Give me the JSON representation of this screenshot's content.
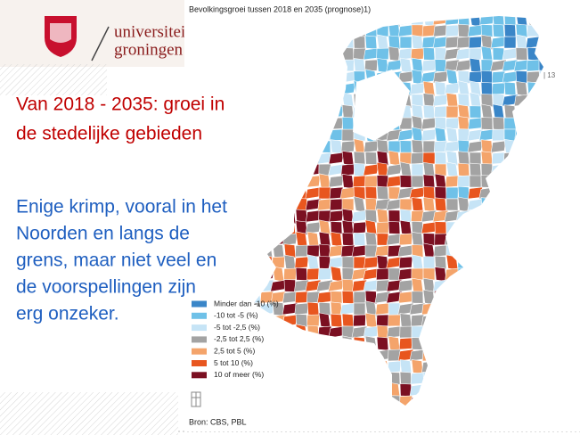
{
  "header": {
    "logo_line1": "universiteit",
    "logo_line2": "groningen",
    "page_number": "| 13"
  },
  "slide": {
    "heading_lines": [
      "Van 2018 - 2035: groei in",
      "de stedelijke gebieden"
    ],
    "body_lines": [
      "Enige krimp, vooral in het",
      "Noorden en langs de",
      "grens, maar niet veel en",
      "de voorspellingen zijn",
      "erg onzeker."
    ]
  },
  "map": {
    "title": "Bevolkingsgroei tussen 2018 en 2035 (prognose)1)",
    "legend": [
      {
        "label": "Minder dan -10 (%)",
        "color": "#3a86c8"
      },
      {
        "label": "-10 tot -5 (%)",
        "color": "#6fc1e8"
      },
      {
        "label": "-5 tot -2,5 (%)",
        "color": "#c6e4f6"
      },
      {
        "label": "-2,5 tot 2,5 (%)",
        "color": "#a3a3a3"
      },
      {
        "label": "2,5 tot 5 (%)",
        "color": "#f4a46b"
      },
      {
        "label": "5 tot 10 (%)",
        "color": "#e8561f"
      },
      {
        "label": "10 of meer (%)",
        "color": "#7b1022"
      }
    ],
    "source": "Bron: CBS, PBL"
  }
}
